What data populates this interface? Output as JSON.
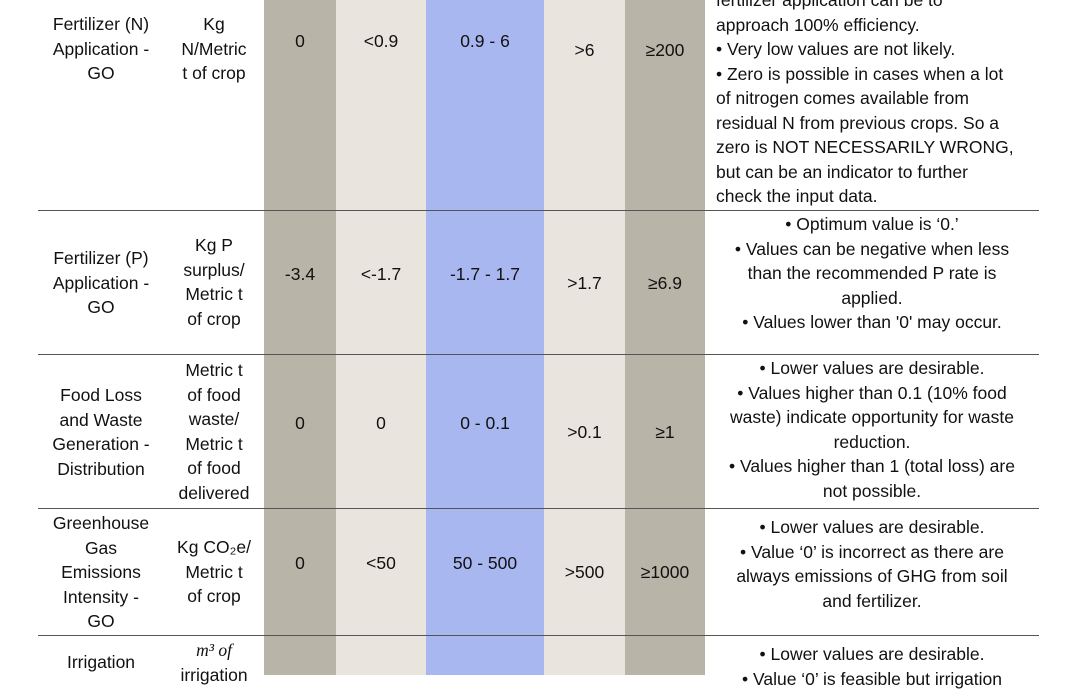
{
  "rows": [
    {
      "indicator": [
        "Fertilizer (N)",
        "Application -",
        "GO"
      ],
      "unit": [
        "Kg",
        "N/Metric",
        "t of crop"
      ],
      "v1": "0",
      "v2": "<0.9",
      "v3": "0.9 - 6",
      "v4": ">6",
      "v5": "≥200",
      "comments": [
        "fertilizer application can be to",
        "approach 100% efficiency.",
        "• Very low values are not likely.",
        "• Zero is possible in cases when a lot",
        "of nitrogen comes available from",
        "residual N from previous crops. So a",
        "zero is NOT NECESSARILY WRONG,",
        "but can be an indicator to further",
        "check the input data."
      ]
    },
    {
      "indicator": [
        "Fertilizer (P)",
        "Application -",
        "GO"
      ],
      "unit": [
        "Kg P",
        "surplus/",
        "Metric t",
        "of crop"
      ],
      "v1": "-3.4",
      "v2": "<-1.7",
      "v3": "-1.7 - 1.7",
      "v4": ">1.7",
      "v5": "≥6.9",
      "comments": [
        "• Optimum value is ‘0.’",
        "• Values can be negative when less",
        "than the recommended P rate is",
        "applied.",
        "• Values lower than '0' may occur."
      ]
    },
    {
      "indicator": [
        "Food Loss",
        "and Waste",
        "Generation -",
        "Distribution"
      ],
      "unit": [
        "Metric t",
        "of food",
        "waste/",
        "Metric t",
        "of food",
        "delivered"
      ],
      "v1": "0",
      "v2": "0",
      "v3": "0 - 0.1",
      "v4": ">0.1",
      "v5": "≥1",
      "comments": [
        "• Lower values are desirable.",
        "• Values higher than 0.1 (10% food",
        "waste) indicate opportunity for waste",
        "reduction.",
        "• Values higher than 1 (total loss) are",
        "not possible."
      ]
    },
    {
      "indicator": [
        "Greenhouse",
        "Gas",
        "Emissions",
        "Intensity -",
        "GO"
      ],
      "unit": [
        "Kg CO₂e/",
        "Metric t",
        "of crop"
      ],
      "v1": "0",
      "v2": "<50",
      "v3": "50 - 500",
      "v4": ">500",
      "v5": "≥1000",
      "comments": [
        "• Lower values are desirable.",
        "• Value ‘0’ is incorrect as there are",
        "always emissions of GHG from soil",
        "and fertilizer."
      ]
    },
    {
      "indicator": [
        "Irrigation"
      ],
      "unit": [
        "m³ of",
        "irrigation"
      ],
      "v1": "",
      "v2": "",
      "v3": "",
      "v4": "",
      "v5": "",
      "comments": [
        "• Lower values are desirable.",
        "• Value ‘0’ is feasible but irrigation"
      ]
    }
  ]
}
